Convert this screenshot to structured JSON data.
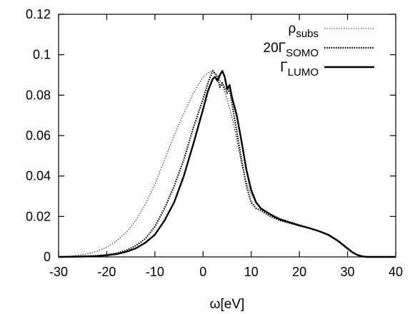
{
  "chart_data": {
    "type": "line",
    "title": "",
    "xlabel": "ω[eV]",
    "ylabel": "",
    "xlim": [
      -30,
      40
    ],
    "ylim": [
      0,
      0.12
    ],
    "x_ticks": [
      -30,
      -20,
      -10,
      0,
      10,
      20,
      30,
      40
    ],
    "x_tick_labels": [
      "-30",
      "-20",
      "-10",
      "0",
      "10",
      "20",
      "30",
      "40"
    ],
    "y_ticks": [
      0,
      0.02,
      0.04,
      0.06,
      0.08,
      0.1,
      0.12
    ],
    "y_tick_labels": [
      "0",
      "0.02",
      "0.04",
      "0.06",
      "0.08",
      "0.1",
      "0.12"
    ],
    "grid": false,
    "legend_position": "top-right",
    "legend": [
      {
        "prefix": "",
        "main": "ρ",
        "sub": "subs",
        "style": "dotted-thin"
      },
      {
        "prefix": "20",
        "main": "Γ",
        "sub": "SOMO",
        "style": "dotted-thick"
      },
      {
        "prefix": "",
        "main": "Γ",
        "sub": "LUMO",
        "style": "solid"
      }
    ],
    "series": [
      {
        "style": "dotted-thin",
        "x": [
          -30,
          -28,
          -26,
          -24,
          -22,
          -20,
          -18,
          -16,
          -14,
          -12,
          -10,
          -8,
          -6,
          -4,
          -2,
          0,
          1,
          2,
          3,
          4,
          5,
          6,
          7,
          8,
          9,
          10,
          11,
          12,
          14,
          16,
          18,
          20,
          22,
          24,
          26,
          28,
          30,
          31,
          32,
          33,
          34,
          36,
          40
        ],
        "y": [
          0,
          0.0003,
          0.0008,
          0.0015,
          0.0028,
          0.0048,
          0.0078,
          0.012,
          0.018,
          0.026,
          0.036,
          0.048,
          0.06,
          0.071,
          0.081,
          0.089,
          0.091,
          0.092,
          0.09,
          0.085,
          0.078,
          0.069,
          0.058,
          0.046,
          0.037,
          0.031,
          0.027,
          0.024,
          0.021,
          0.019,
          0.0175,
          0.016,
          0.0145,
          0.013,
          0.011,
          0.008,
          0.004,
          0.0022,
          0.001,
          0.0003,
          0,
          0,
          0
        ]
      },
      {
        "style": "dotted-thick",
        "x": [
          -30,
          -26,
          -22,
          -20,
          -18,
          -16,
          -14,
          -12,
          -10,
          -8,
          -6,
          -4,
          -2,
          0,
          1,
          2,
          3,
          3.5,
          4,
          5,
          5.5,
          6,
          7,
          8,
          9,
          10,
          11,
          12,
          14,
          16,
          18,
          20,
          22,
          24,
          26,
          28,
          30,
          31,
          32,
          33,
          34,
          36,
          40
        ],
        "y": [
          0,
          0.0002,
          0.0006,
          0.001,
          0.0018,
          0.0032,
          0.0055,
          0.009,
          0.015,
          0.024,
          0.035,
          0.048,
          0.064,
          0.078,
          0.086,
          0.092,
          0.089,
          0.084,
          0.086,
          0.081,
          0.083,
          0.076,
          0.062,
          0.048,
          0.035,
          0.027,
          0.024,
          0.023,
          0.02,
          0.018,
          0.0168,
          0.0155,
          0.0143,
          0.0128,
          0.0108,
          0.0078,
          0.004,
          0.0022,
          0.001,
          0.0003,
          0,
          0,
          0
        ]
      },
      {
        "style": "solid",
        "x": [
          -30,
          -26,
          -22,
          -20,
          -18,
          -16,
          -14,
          -12,
          -10,
          -8,
          -6,
          -4,
          -2,
          0,
          1,
          2,
          2.5,
          3,
          3.5,
          4,
          4.5,
          5,
          5.5,
          6,
          7,
          8,
          9,
          10,
          11,
          12,
          14,
          16,
          18,
          20,
          22,
          24,
          26,
          28,
          30,
          31,
          32,
          33,
          34,
          36,
          40
        ],
        "y": [
          0,
          0.0001,
          0.0004,
          0.0008,
          0.0014,
          0.0025,
          0.0042,
          0.007,
          0.011,
          0.018,
          0.027,
          0.04,
          0.056,
          0.073,
          0.082,
          0.088,
          0.089,
          0.087,
          0.09,
          0.092,
          0.089,
          0.083,
          0.085,
          0.079,
          0.07,
          0.057,
          0.043,
          0.033,
          0.027,
          0.024,
          0.021,
          0.0185,
          0.017,
          0.0155,
          0.0143,
          0.0128,
          0.011,
          0.008,
          0.0042,
          0.0023,
          0.001,
          0.0003,
          0,
          0,
          0
        ]
      }
    ]
  }
}
